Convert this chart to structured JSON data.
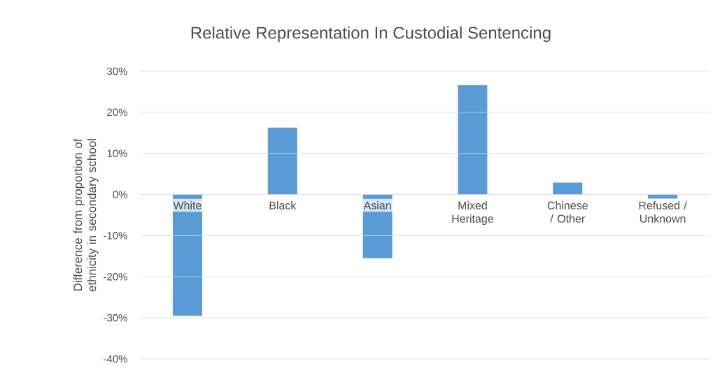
{
  "chart_data": {
    "type": "bar",
    "title": "Relative Representation In Custodial Sentencing",
    "ylabel": "Difference from proportion of ethnicity in secondary school",
    "categories": [
      "White",
      "Black",
      "Asian",
      "Mixed Heritage",
      "Chinese / Other",
      "Refused / Unknown"
    ],
    "values": [
      -29.5,
      16.3,
      -15.5,
      26.6,
      2.9,
      -1
    ],
    "color": "#5b9bd5",
    "ylim": [
      -40,
      30
    ],
    "yticks": [
      {
        "value": -40,
        "label": "-40%"
      },
      {
        "value": -30,
        "label": "-30%"
      },
      {
        "value": -20,
        "label": "-20%"
      },
      {
        "value": -10,
        "label": "-10%"
      },
      {
        "value": 0,
        "label": "0%"
      },
      {
        "value": 10,
        "label": "10%"
      },
      {
        "value": 20,
        "label": "20%"
      },
      {
        "value": 30,
        "label": "30%"
      }
    ],
    "grid": "y"
  }
}
